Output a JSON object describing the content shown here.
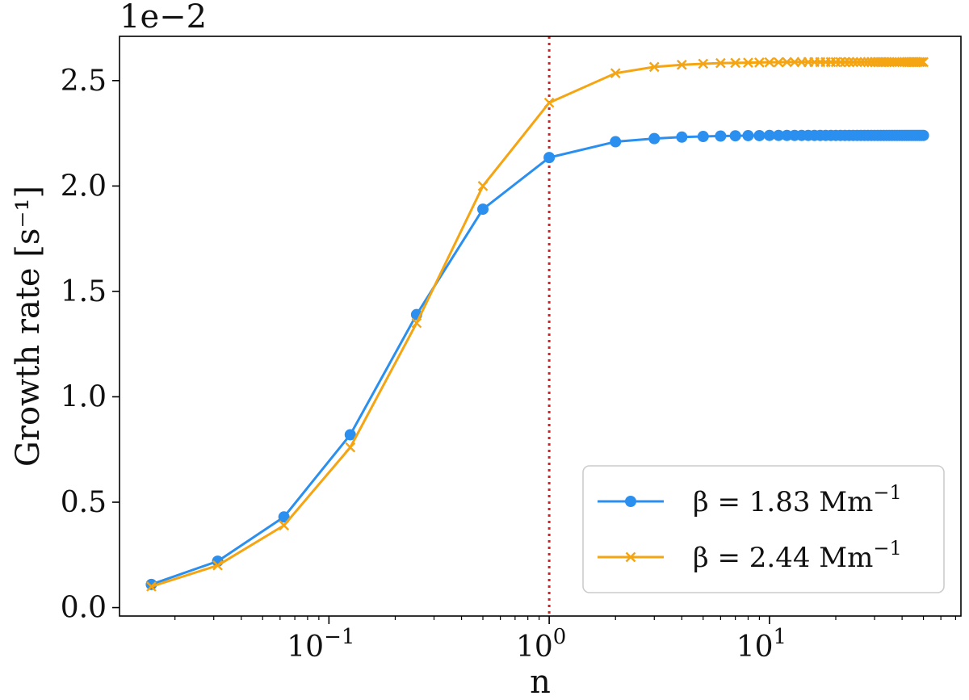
{
  "chart_data": {
    "type": "line",
    "title": "",
    "xlabel": "n",
    "ylabel": "Growth rate [s⁻¹]",
    "xscale": "log",
    "xlim": [
      0.0112,
      74
    ],
    "ylim": [
      -0.0004,
      0.0271
    ],
    "y_multiplier_label": "1e−2",
    "x_ticks": [
      {
        "value": 0.1,
        "base": "10",
        "exp": "−1"
      },
      {
        "value": 1,
        "base": "10",
        "exp": "0"
      },
      {
        "value": 10,
        "base": "10",
        "exp": "1"
      }
    ],
    "y_ticks": [
      {
        "value": 0.0,
        "label": "0.0"
      },
      {
        "value": 0.005,
        "label": "0.5"
      },
      {
        "value": 0.01,
        "label": "1.0"
      },
      {
        "value": 0.015,
        "label": "1.5"
      },
      {
        "value": 0.02,
        "label": "2.0"
      },
      {
        "value": 0.025,
        "label": "2.5"
      }
    ],
    "reference_line": {
      "x": 1.0,
      "color": "#e8191c",
      "style": "dotted"
    },
    "x": [
      0.015625,
      0.03125,
      0.0625,
      0.125,
      0.25,
      0.5,
      1,
      2,
      3,
      4,
      5,
      6,
      7,
      8,
      9,
      10,
      11,
      12,
      13,
      14,
      15,
      16,
      17,
      18,
      19,
      20,
      21,
      22,
      23,
      24,
      25,
      26,
      27,
      28,
      29,
      30,
      31,
      32,
      33,
      34,
      35,
      36,
      37,
      38,
      39,
      40,
      41,
      42,
      43,
      44,
      45,
      46,
      47,
      48,
      49,
      50
    ],
    "series": [
      {
        "name": "β = 1.83 Mm⁻¹",
        "legend_main": "β = 1.83 Mm",
        "legend_sup": "−1",
        "color": "#2b8fef",
        "marker": "circle",
        "values": [
          0.0011,
          0.0022,
          0.0043,
          0.0082,
          0.0139,
          0.0189,
          0.02135,
          0.0221,
          0.02225,
          0.02232,
          0.02235,
          0.02237,
          0.02238,
          0.02239,
          0.02239,
          0.0224,
          0.0224,
          0.0224,
          0.0224,
          0.0224,
          0.0224,
          0.0224,
          0.0224,
          0.0224,
          0.0224,
          0.0224,
          0.0224,
          0.0224,
          0.0224,
          0.0224,
          0.0224,
          0.0224,
          0.0224,
          0.0224,
          0.0224,
          0.0224,
          0.0224,
          0.0224,
          0.0224,
          0.0224,
          0.0224,
          0.0224,
          0.0224,
          0.0224,
          0.0224,
          0.0224,
          0.0224,
          0.0224,
          0.0224,
          0.0224,
          0.0224,
          0.0224,
          0.0224,
          0.0224,
          0.0224,
          0.0224
        ]
      },
      {
        "name": "β = 2.44 Mm⁻¹",
        "legend_main": "β = 2.44 Mm",
        "legend_sup": "−1",
        "color": "#f5a412",
        "marker": "x",
        "values": [
          0.001,
          0.002,
          0.0039,
          0.0076,
          0.0135,
          0.02,
          0.02395,
          0.02535,
          0.02565,
          0.02575,
          0.0258,
          0.02583,
          0.02584,
          0.02585,
          0.02586,
          0.02587,
          0.02587,
          0.02588,
          0.02588,
          0.02588,
          0.02588,
          0.02588,
          0.02588,
          0.02588,
          0.02588,
          0.02588,
          0.02588,
          0.02588,
          0.02588,
          0.02588,
          0.02588,
          0.02588,
          0.02588,
          0.02588,
          0.02588,
          0.02588,
          0.02588,
          0.02588,
          0.02588,
          0.02588,
          0.02588,
          0.02588,
          0.02588,
          0.02588,
          0.02588,
          0.02588,
          0.02588,
          0.02588,
          0.02588,
          0.02588,
          0.02588,
          0.02588,
          0.02588,
          0.02588,
          0.02588,
          0.02588
        ]
      }
    ],
    "legend_position": "lower-right"
  }
}
